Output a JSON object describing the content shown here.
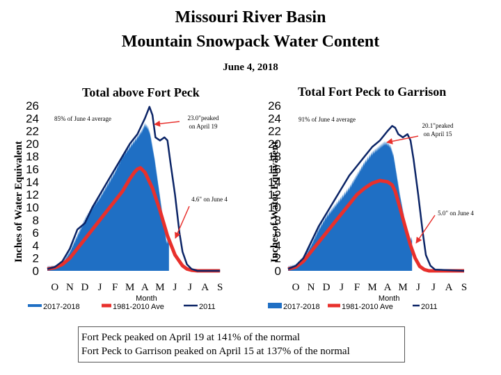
{
  "page": {
    "title_line1": "Missouri River Basin",
    "title_line2": "Mountain Snowpack Water Content",
    "date": "June 4, 2018",
    "footnote_line1": "Fort Peck peaked on April 19 at 141% of the normal",
    "footnote_line2": "Fort Peck to Garrison peaked on April 15 at 137% of the normal"
  },
  "colors": {
    "current": "#1f6fc4",
    "normal": "#e8302c",
    "y2011": "#0b2466",
    "arrow": "#e8302c"
  },
  "chart_data": [
    {
      "type": "area",
      "title": "Total above Fort Peck",
      "ylabel": "Inches of Water Equivalent",
      "xlabel": "Month",
      "ylim": [
        0,
        26
      ],
      "yticks": [
        0,
        2,
        4,
        6,
        8,
        10,
        12,
        14,
        16,
        18,
        20,
        22,
        24,
        26
      ],
      "month_labels": [
        "O",
        "N",
        "D",
        "J",
        "F",
        "M",
        "A",
        "M",
        "J",
        "J",
        "A",
        "S"
      ],
      "legend": [
        "2017-2018",
        "1981-2010 Ave",
        "2011"
      ],
      "annotations": [
        "85% of June 4 average",
        "23.0\"peaked on April 19",
        "4.6\" on June 4"
      ],
      "series": [
        {
          "name": "2017-2018",
          "x": [
            0,
            0.6,
            1.0,
            1.5,
            2.0,
            2.5,
            3.0,
            3.5,
            4.0,
            4.5,
            5.0,
            5.5,
            6.0,
            6.3,
            6.5,
            6.7,
            6.85,
            7.0,
            7.15,
            7.3,
            7.45,
            7.6,
            7.75,
            7.93,
            8.1
          ],
          "y": [
            0.5,
            0.6,
            1.2,
            3.0,
            5.5,
            8.0,
            10.0,
            11.5,
            13.5,
            15.5,
            18.0,
            19.5,
            21.0,
            22.0,
            23.0,
            22.5,
            21.5,
            19.5,
            17.5,
            15.0,
            12.5,
            10.0,
            7.5,
            4.6,
            4.6
          ]
        },
        {
          "name": "1981-2010 Ave",
          "x": [
            0,
            0.5,
            1.0,
            1.5,
            2.0,
            2.5,
            3.0,
            3.5,
            4.0,
            4.5,
            5.0,
            5.5,
            5.8,
            6.0,
            6.2,
            6.5,
            7.0,
            7.5,
            8.0,
            8.5,
            9.0,
            9.3,
            9.6,
            10.0,
            11.5
          ],
          "y": [
            0.3,
            0.5,
            1.0,
            2.0,
            3.5,
            5.0,
            6.5,
            8.0,
            9.5,
            11.0,
            12.5,
            14.5,
            15.5,
            16.0,
            16.2,
            15.5,
            13.0,
            9.5,
            5.5,
            2.5,
            0.8,
            0.3,
            0.1,
            0,
            0
          ]
        },
        {
          "name": "2011",
          "x": [
            0,
            0.5,
            1.0,
            1.5,
            2.0,
            2.5,
            3.0,
            3.5,
            4.0,
            4.5,
            5.0,
            5.5,
            6.0,
            6.5,
            6.8,
            7.0,
            7.2,
            7.5,
            7.8,
            8.0,
            8.2,
            8.5,
            8.8,
            9.0,
            9.3,
            9.6,
            10.0,
            11.5
          ],
          "y": [
            0.3,
            0.6,
            1.5,
            3.5,
            6.5,
            7.5,
            10.0,
            12.0,
            14.0,
            16.0,
            18.0,
            20.0,
            21.5,
            24.0,
            25.8,
            24.5,
            21.0,
            20.5,
            21.0,
            20.5,
            17.0,
            12.0,
            6.0,
            3.0,
            1.0,
            0.3,
            0,
            0
          ]
        }
      ]
    },
    {
      "type": "area",
      "title": "Total Fort Peck to Garrison",
      "ylabel": "Inches of Water Equivalent",
      "xlabel": "Month",
      "ylim": [
        0,
        26
      ],
      "yticks": [
        0,
        2,
        4,
        6,
        8,
        10,
        12,
        14,
        16,
        18,
        20,
        22,
        24,
        26
      ],
      "month_labels": [
        "O",
        "N",
        "D",
        "J",
        "F",
        "M",
        "A",
        "M",
        "J",
        "J",
        "A",
        "S"
      ],
      "legend": [
        "2017-2018",
        "1981-2010 Ave",
        "2011"
      ],
      "annotations": [
        "91% of June 4 average",
        "20.1\"peaked on April 15",
        "5.0\" on June 4"
      ],
      "series": [
        {
          "name": "2017-2018",
          "x": [
            0,
            0.5,
            1.0,
            1.5,
            2.0,
            2.5,
            3.0,
            3.5,
            4.0,
            4.5,
            5.0,
            5.5,
            6.0,
            6.3,
            6.5,
            6.7,
            6.9,
            7.1,
            7.3,
            7.5,
            7.7,
            7.93,
            8.1
          ],
          "y": [
            0.5,
            0.8,
            2.0,
            4.0,
            6.5,
            8.5,
            10.0,
            11.5,
            13.0,
            15.0,
            17.0,
            18.5,
            19.5,
            20.1,
            20.0,
            19.5,
            18.0,
            15.0,
            12.0,
            9.5,
            7.0,
            5.0,
            5.0
          ]
        },
        {
          "name": "1981-2010 Ave",
          "x": [
            0,
            0.5,
            1.0,
            1.5,
            2.0,
            2.5,
            3.0,
            3.5,
            4.0,
            4.5,
            5.0,
            5.5,
            6.0,
            6.5,
            6.8,
            7.0,
            7.3,
            7.7,
            8.0,
            8.3,
            8.6,
            8.9,
            9.2,
            11.5
          ],
          "y": [
            0.3,
            0.6,
            1.5,
            3.0,
            4.5,
            6.0,
            7.5,
            9.0,
            10.5,
            12.0,
            13.0,
            13.8,
            14.2,
            14.0,
            13.5,
            12.5,
            10.0,
            6.5,
            4.0,
            2.0,
            0.7,
            0.2,
            0,
            0
          ]
        },
        {
          "name": "2011",
          "x": [
            0,
            0.5,
            1.0,
            1.5,
            2.0,
            2.5,
            3.0,
            3.5,
            4.0,
            4.5,
            5.0,
            5.5,
            6.0,
            6.5,
            6.8,
            7.0,
            7.2,
            7.5,
            7.8,
            8.0,
            8.2,
            8.5,
            8.8,
            9.0,
            9.3,
            9.6,
            11.5
          ],
          "y": [
            0.3,
            0.8,
            2.0,
            4.5,
            7.0,
            9.0,
            11.0,
            13.0,
            15.0,
            16.5,
            18.0,
            19.5,
            20.5,
            22.0,
            22.8,
            22.5,
            21.5,
            21.0,
            21.5,
            20.5,
            17.5,
            12.0,
            6.0,
            2.5,
            0.8,
            0.2,
            0
          ]
        }
      ]
    }
  ]
}
